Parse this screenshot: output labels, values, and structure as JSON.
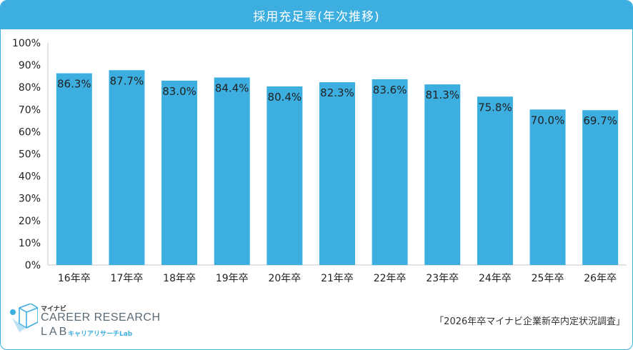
{
  "title": "採用充足率(年次推移)",
  "source": "「2026年卒マイナビ企業新卒内定状況調査」",
  "logo": {
    "small": "マイナビ",
    "main": "CAREER RESEARCH",
    "lab": "LAB",
    "jp": "キャリアリサーチLab"
  },
  "colors": {
    "bar": "#3daee0",
    "header": "#3daee0",
    "axis": "#c8c8c8",
    "text": "#222222"
  },
  "chart_data": {
    "type": "bar",
    "title": "採用充足率(年次推移)",
    "categories": [
      "16年卒",
      "17年卒",
      "18年卒",
      "19年卒",
      "20年卒",
      "21年卒",
      "22年卒",
      "23年卒",
      "24年卒",
      "25年卒",
      "26年卒"
    ],
    "values": [
      86.3,
      87.7,
      83.0,
      84.4,
      80.4,
      82.3,
      83.6,
      81.3,
      75.8,
      70.0,
      69.7
    ],
    "value_labels": [
      "86.3%",
      "87.7%",
      "83.0%",
      "84.4%",
      "80.4%",
      "82.3%",
      "83.6%",
      "81.3%",
      "75.8%",
      "70.0%",
      "69.7%"
    ],
    "ylim": [
      0,
      100
    ],
    "yticks": [
      "0%",
      "10%",
      "20%",
      "30%",
      "40%",
      "50%",
      "60%",
      "70%",
      "80%",
      "90%",
      "100%"
    ],
    "grid": false
  }
}
